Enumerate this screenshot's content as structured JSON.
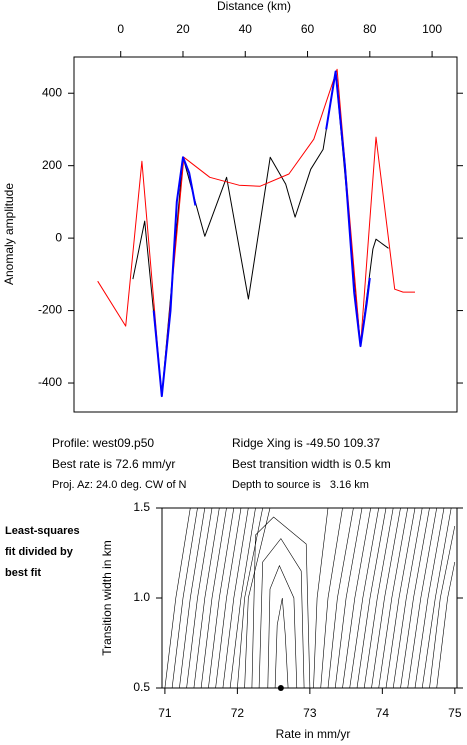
{
  "chart_data": [
    {
      "type": "line",
      "x_label": "Distance (km)",
      "y_label": "Anomaly amplitude",
      "xlim": [
        -15,
        108
      ],
      "ylim": [
        -480,
        500
      ],
      "xticks": [
        0,
        20,
        40,
        60,
        80,
        100
      ],
      "yticks": [
        -400,
        -200,
        0,
        200,
        400
      ],
      "series": [
        {
          "color": "#000000",
          "x": [
            3.9,
            7.7,
            13.2,
            20,
            27,
            34,
            41,
            48,
            53,
            56,
            61,
            65,
            69,
            77,
            81,
            82,
            86
          ],
          "values": [
            -113,
            47,
            -436,
            223,
            5,
            168,
            -168,
            223,
            149,
            58,
            190,
            245,
            460,
            -298,
            -30,
            -3,
            -28
          ]
        },
        {
          "color": "#ff0000",
          "x": [
            -7.4,
            1.6,
            6.8,
            13.2,
            20.3,
            28.6,
            38,
            44.7,
            54,
            62,
            69.5,
            77,
            82,
            88,
            90.7,
            94.5
          ],
          "values": [
            -119,
            -243,
            212,
            -436,
            223,
            168,
            146,
            143,
            177,
            273,
            466,
            -298,
            279,
            -141,
            -149,
            -149
          ]
        },
        {
          "color": "#0000ff",
          "x": [
            10.6,
            13.2,
            16,
            18,
            20,
            22,
            24,
            45,
            66,
            69,
            72,
            75,
            77,
            79,
            80
          ],
          "values": [
            -200,
            -436,
            -200,
            100,
            223,
            180,
            90,
            null,
            300,
            460,
            200,
            -150,
            -298,
            -180,
            -110
          ]
        }
      ]
    },
    {
      "type": "contour",
      "x_label": "Rate in mm/yr",
      "y_label": "Transition width in km",
      "xlim": [
        70.96,
        75.03
      ],
      "ylim": [
        0.5,
        1.5
      ],
      "xticks": [
        71,
        72,
        73,
        74,
        75
      ],
      "yticks": [
        0.5,
        {
          "value": 1,
          "label": "1.0"
        },
        1.5
      ],
      "color": "#000000",
      "contours": [
        {
          "x": [
            71.0,
            71.15,
            71.35
          ],
          "y": [
            0.5,
            1.0,
            1.5
          ]
        },
        {
          "x": [
            71.1,
            71.25,
            71.45
          ],
          "y": [
            0.5,
            1.0,
            1.5
          ]
        },
        {
          "x": [
            71.2,
            71.35,
            71.55
          ],
          "y": [
            0.5,
            1.0,
            1.5
          ]
        },
        {
          "x": [
            71.3,
            71.45,
            71.65
          ],
          "y": [
            0.5,
            1.0,
            1.5
          ]
        },
        {
          "x": [
            71.4,
            71.55,
            71.75
          ],
          "y": [
            0.5,
            1.0,
            1.5
          ]
        },
        {
          "x": [
            71.5,
            71.65,
            71.85
          ],
          "y": [
            0.5,
            1.0,
            1.5
          ]
        },
        {
          "x": [
            71.6,
            71.75,
            71.95
          ],
          "y": [
            0.5,
            1.0,
            1.5
          ]
        },
        {
          "x": [
            71.7,
            71.85,
            72.05
          ],
          "y": [
            0.5,
            1.0,
            1.5
          ]
        },
        {
          "x": [
            71.8,
            71.95,
            72.15
          ],
          "y": [
            0.5,
            1.0,
            1.5
          ]
        },
        {
          "x": [
            71.9,
            72.05,
            72.25
          ],
          "y": [
            0.5,
            1.0,
            1.5
          ]
        },
        {
          "x": [
            72.0,
            72.1,
            72.35
          ],
          "y": [
            0.5,
            1.0,
            1.5
          ]
        },
        {
          "x": [
            72.1,
            72.15,
            72.45
          ],
          "y": [
            0.5,
            1.0,
            1.5
          ]
        },
        {
          "x": [
            72.52,
            72.55,
            72.62,
            72.66,
            72.7
          ],
          "y": [
            0.5,
            0.85,
            1.0,
            0.8,
            0.5
          ]
        },
        {
          "x": [
            72.42,
            72.45,
            72.58,
            72.78,
            72.82
          ],
          "y": [
            0.5,
            1.05,
            1.18,
            1.0,
            0.5
          ]
        },
        {
          "x": [
            72.3,
            72.35,
            72.6,
            72.88,
            72.92
          ],
          "y": [
            0.5,
            1.2,
            1.33,
            1.15,
            0.5
          ]
        },
        {
          "x": [
            72.2,
            72.25,
            72.5,
            72.95,
            73.0
          ],
          "y": [
            0.5,
            1.35,
            1.45,
            1.3,
            0.5
          ]
        },
        {
          "x": [
            73.05,
            73.1,
            73.25
          ],
          "y": [
            0.5,
            1.0,
            1.5
          ]
        },
        {
          "x": [
            73.15,
            73.25,
            73.45
          ],
          "y": [
            0.5,
            1.0,
            1.5
          ]
        },
        {
          "x": [
            73.25,
            73.38,
            73.6
          ],
          "y": [
            0.5,
            1.0,
            1.5
          ]
        },
        {
          "x": [
            73.35,
            73.5,
            73.72
          ],
          "y": [
            0.5,
            1.0,
            1.5
          ]
        },
        {
          "x": [
            73.45,
            73.62,
            73.84
          ],
          "y": [
            0.5,
            1.0,
            1.5
          ]
        },
        {
          "x": [
            73.55,
            73.73,
            73.95
          ],
          "y": [
            0.5,
            1.0,
            1.5
          ]
        },
        {
          "x": [
            73.65,
            73.83,
            74.05
          ],
          "y": [
            0.5,
            1.0,
            1.5
          ]
        },
        {
          "x": [
            73.75,
            73.93,
            74.15
          ],
          "y": [
            0.5,
            1.0,
            1.5
          ]
        },
        {
          "x": [
            73.85,
            74.03,
            74.25
          ],
          "y": [
            0.5,
            1.0,
            1.5
          ]
        },
        {
          "x": [
            73.95,
            74.13,
            74.35
          ],
          "y": [
            0.5,
            1.0,
            1.5
          ]
        },
        {
          "x": [
            74.05,
            74.23,
            74.45
          ],
          "y": [
            0.5,
            1.0,
            1.5
          ]
        },
        {
          "x": [
            74.15,
            74.33,
            74.55
          ],
          "y": [
            0.5,
            1.0,
            1.5
          ]
        },
        {
          "x": [
            74.25,
            74.43,
            74.65
          ],
          "y": [
            0.5,
            1.0,
            1.5
          ]
        },
        {
          "x": [
            74.35,
            74.53,
            74.75
          ],
          "y": [
            0.5,
            1.0,
            1.5
          ]
        },
        {
          "x": [
            74.45,
            74.63,
            74.85
          ],
          "y": [
            0.5,
            1.0,
            1.5
          ]
        },
        {
          "x": [
            74.55,
            74.73,
            74.95
          ],
          "y": [
            0.5,
            1.0,
            1.5
          ]
        },
        {
          "x": [
            74.65,
            74.8,
            75.0
          ],
          "y": [
            0.5,
            1.0,
            1.4
          ]
        },
        {
          "x": [
            74.75,
            74.9,
            75.0
          ],
          "y": [
            0.5,
            1.0,
            1.2
          ]
        }
      ],
      "minimum": {
        "x": 72.6,
        "y": 0.5
      }
    }
  ],
  "info": {
    "profile": "Profile: west09.p50",
    "rate": "Best rate is 72.6 mm/yr",
    "azimuth": "Proj. Az: 24.0 deg. CW of N",
    "ridge": "Ridge Xing is -49.50 109.37",
    "width": "Best transition width is 0.5 km",
    "depth": "Depth to source is   3.16 km"
  },
  "note": [
    "Least-squares",
    "fit divided by",
    "best fit"
  ]
}
